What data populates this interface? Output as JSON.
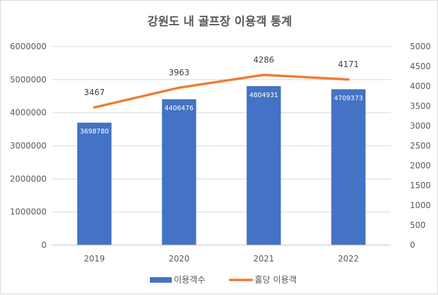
{
  "chart_data": {
    "type": "bar",
    "title": "강원도 내 골프장 이용객 통계",
    "categories": [
      "2019",
      "2020",
      "2021",
      "2022"
    ],
    "series": [
      {
        "name": "이용객수",
        "type": "bar",
        "axis": "left",
        "values": [
          3698780,
          4406476,
          4804931,
          4709373
        ],
        "labels": [
          "3698780",
          "4406476",
          "4804931",
          "4709373"
        ],
        "color": "#4472c4"
      },
      {
        "name": "홀당 이용객",
        "type": "line",
        "axis": "right",
        "values": [
          3467,
          3963,
          4286,
          4171
        ],
        "labels": [
          "3467",
          "3963",
          "4286",
          "4171"
        ],
        "color": "#ed7d31"
      }
    ],
    "y_left": {
      "ylim": [
        0,
        6000000
      ],
      "ticks": [
        "0",
        "1000000",
        "2000000",
        "3000000",
        "4000000",
        "5000000",
        "6000000"
      ]
    },
    "y_right": {
      "ylim": [
        0,
        5000
      ],
      "ticks": [
        "0",
        "500",
        "1000",
        "1500",
        "2000",
        "2500",
        "3000",
        "3500",
        "4000",
        "4500",
        "5000"
      ]
    },
    "grid": true,
    "legend_position": "bottom"
  }
}
